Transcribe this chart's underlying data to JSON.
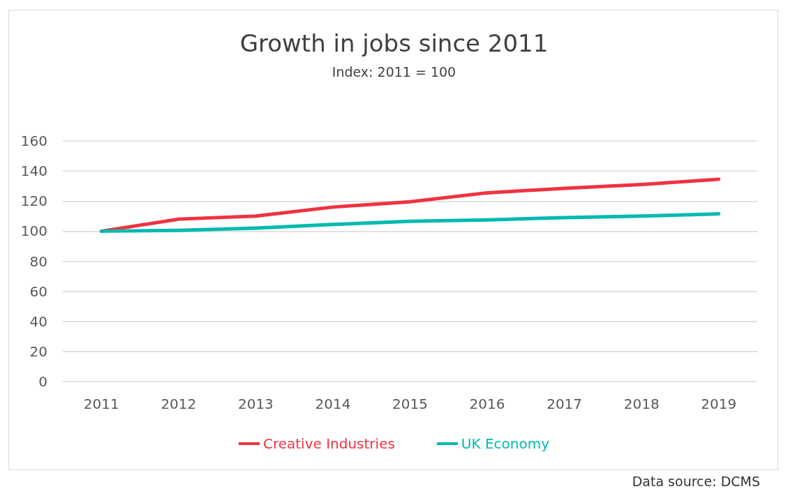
{
  "chart_data": {
    "type": "line",
    "title": "Growth in jobs since 2011",
    "subtitle": "Index: 2011 = 100",
    "categories": [
      "2011",
      "2012",
      "2013",
      "2014",
      "2015",
      "2016",
      "2017",
      "2018",
      "2019"
    ],
    "series": [
      {
        "name": "Creative Industries",
        "color": "#ef3341",
        "values": [
          100,
          108,
          110,
          116,
          119.5,
          125.5,
          128.5,
          131,
          134.5
        ]
      },
      {
        "name": "UK Economy",
        "color": "#00b9b0",
        "values": [
          100,
          100.5,
          102,
          104.5,
          106.5,
          107.5,
          109,
          110,
          111.5
        ]
      }
    ],
    "ylim": [
      0,
      160
    ],
    "yticks": [
      0,
      20,
      40,
      60,
      80,
      100,
      120,
      140,
      160
    ],
    "grid": "y",
    "legend": "bottom",
    "marker": "none",
    "line_style": "solid",
    "annotations": [
      "Data source: DCMS"
    ]
  }
}
